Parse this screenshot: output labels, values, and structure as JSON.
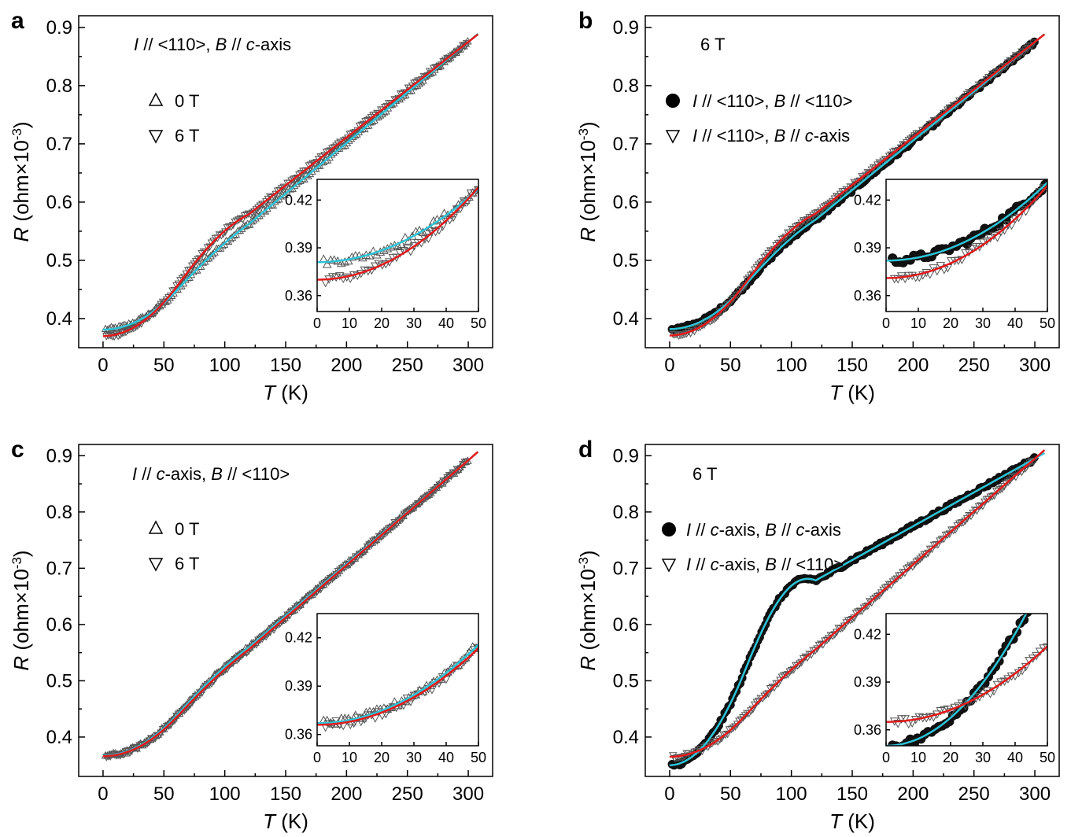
{
  "chart_data": [
    {
      "type": "scatter",
      "panel": "a",
      "x_label": "T (K)",
      "x_label_parts": [
        "T",
        " (K)"
      ],
      "y_label_parts": [
        "R",
        " (ohm",
        "×",
        "10",
        "-3",
        ")"
      ],
      "xlim": [
        -20,
        320
      ],
      "ylim": [
        0.35,
        0.92
      ],
      "xticks": [
        0,
        50,
        100,
        150,
        200,
        250,
        300
      ],
      "yticks": [
        0.4,
        0.5,
        0.6,
        0.7,
        0.8,
        0.9
      ],
      "annotation_parts": [
        "I",
        " // <110>, ",
        "B",
        " // ",
        "c",
        "-axis"
      ],
      "legend": [
        {
          "marker": "triangle-up-open",
          "label": "0 T"
        },
        {
          "marker": "triangle-down-open",
          "label": "6 T"
        }
      ],
      "series": [
        {
          "name": "0 T",
          "marker": "triangle-up-open",
          "color": "#555555",
          "fit_color": "#2ec4d6",
          "r0": 0.381,
          "a": 1.84e-05,
          "r300": 0.875
        },
        {
          "name": "6 T",
          "marker": "triangle-down-open",
          "color": "#555555",
          "fit_color": "#e41a1c",
          "r0": 0.37,
          "a": 2.32e-05,
          "r300": 0.875
        }
      ],
      "fit_xmax": 308,
      "inset": {
        "xlim": [
          0,
          50
        ],
        "ylim": [
          0.35,
          0.433
        ],
        "xticks": [
          0,
          10,
          20,
          30,
          40,
          50
        ],
        "yticks": [
          0.36,
          0.39,
          0.42
        ]
      }
    },
    {
      "type": "scatter",
      "panel": "b",
      "x_label": "T (K)",
      "x_label_parts": [
        "T",
        " (K)"
      ],
      "y_label_parts": [
        "R",
        " (ohm",
        "×",
        "10",
        "-3",
        ")"
      ],
      "xlim": [
        -20,
        320
      ],
      "ylim": [
        0.35,
        0.92
      ],
      "xticks": [
        0,
        50,
        100,
        150,
        200,
        250,
        300
      ],
      "yticks": [
        0.4,
        0.5,
        0.6,
        0.7,
        0.8,
        0.9
      ],
      "annotation_parts": [
        "6 T"
      ],
      "legend": [
        {
          "marker": "circle-filled",
          "label_parts": [
            "I",
            " // <110>, ",
            "B",
            " // <110>"
          ]
        },
        {
          "marker": "triangle-down-open",
          "label_parts": [
            "I",
            " // <110>, ",
            "B",
            " // ",
            "c",
            "-axis"
          ]
        }
      ],
      "series": [
        {
          "name": "I // <110>, B // <110>",
          "marker": "circle-filled",
          "color": "#111111",
          "fit_color": "#2ec4d6",
          "r0": 0.382,
          "a": 1.96e-05,
          "r300": 0.875
        },
        {
          "name": "I // <110>, B // c-axis",
          "marker": "triangle-down-open",
          "color": "#555555",
          "fit_color": "#e41a1c",
          "r0": 0.371,
          "a": 2.32e-05,
          "r300": 0.875
        }
      ],
      "fit_xmax": 308,
      "inset": {
        "xlim": [
          0,
          50
        ],
        "ylim": [
          0.35,
          0.433
        ],
        "xticks": [
          0,
          10,
          20,
          30,
          40,
          50
        ],
        "yticks": [
          0.36,
          0.39,
          0.42
        ]
      }
    },
    {
      "type": "scatter",
      "panel": "c",
      "x_label": "T (K)",
      "x_label_parts": [
        "T",
        " (K)"
      ],
      "y_label_parts": [
        "R",
        " (ohm",
        "×",
        "10",
        "-3",
        ")"
      ],
      "xlim": [
        -20,
        320
      ],
      "ylim": [
        0.33,
        0.92
      ],
      "xticks": [
        0,
        50,
        100,
        150,
        200,
        250,
        300
      ],
      "yticks": [
        0.4,
        0.5,
        0.6,
        0.7,
        0.8,
        0.9
      ],
      "annotation_parts": [
        "I",
        " // ",
        "c",
        "-axis, ",
        "B",
        " // <110>"
      ],
      "legend": [
        {
          "marker": "triangle-up-open",
          "label": "0 T"
        },
        {
          "marker": "triangle-down-open",
          "label": "6 T"
        }
      ],
      "series": [
        {
          "name": "0 T",
          "marker": "triangle-up-open",
          "color": "#555555",
          "fit_color": "#2ec4d6",
          "r0": 0.367,
          "a": 1.95e-05,
          "r300": 0.892
        },
        {
          "name": "6 T",
          "marker": "triangle-down-open",
          "color": "#555555",
          "fit_color": "#e41a1c",
          "r0": 0.366,
          "a": 1.9e-05,
          "r300": 0.892
        }
      ],
      "fit_xmax": 308,
      "inset": {
        "xlim": [
          0,
          50
        ],
        "ylim": [
          0.353,
          0.435
        ],
        "xticks": [
          0,
          10,
          20,
          30,
          40,
          50
        ],
        "yticks": [
          0.36,
          0.39,
          0.42
        ]
      }
    },
    {
      "type": "scatter",
      "panel": "d",
      "x_label": "T (K)",
      "x_label_parts": [
        "T",
        " (K)"
      ],
      "y_label_parts": [
        "R",
        " (ohm",
        "×",
        "10",
        "-3",
        ")"
      ],
      "xlim": [
        -20,
        320
      ],
      "ylim": [
        0.33,
        0.92
      ],
      "xticks": [
        0,
        50,
        100,
        150,
        200,
        250,
        300
      ],
      "yticks": [
        0.4,
        0.5,
        0.6,
        0.7,
        0.8,
        0.9
      ],
      "annotation_parts": [
        "6 T"
      ],
      "legend": [
        {
          "marker": "circle-filled",
          "label_parts": [
            "I",
            " // ",
            "c",
            "-axis, ",
            "B",
            " // ",
            "c",
            "-axis"
          ]
        },
        {
          "marker": "triangle-down-open",
          "label_parts": [
            "I",
            " // ",
            "c",
            "-axis, ",
            "B",
            " // <110>"
          ]
        }
      ],
      "series": [
        {
          "name": "I // c-axis, B // c-axis",
          "marker": "circle-filled",
          "color": "#111111",
          "fit_color": "#2ec4d6",
          "r0": 0.35,
          "a": 4.4e-05,
          "r300": 0.895
        },
        {
          "name": "I // c-axis, B // <110>",
          "marker": "triangle-down-open",
          "color": "#555555",
          "fit_color": "#e41a1c",
          "r0": 0.365,
          "a": 1.9e-05,
          "r300": 0.895
        }
      ],
      "fit_xmax": 308,
      "inset": {
        "xlim": [
          0,
          50
        ],
        "ylim": [
          0.35,
          0.433
        ],
        "xticks": [
          0,
          10,
          20,
          30,
          40,
          50
        ],
        "yticks": [
          0.36,
          0.39,
          0.42
        ]
      }
    }
  ]
}
